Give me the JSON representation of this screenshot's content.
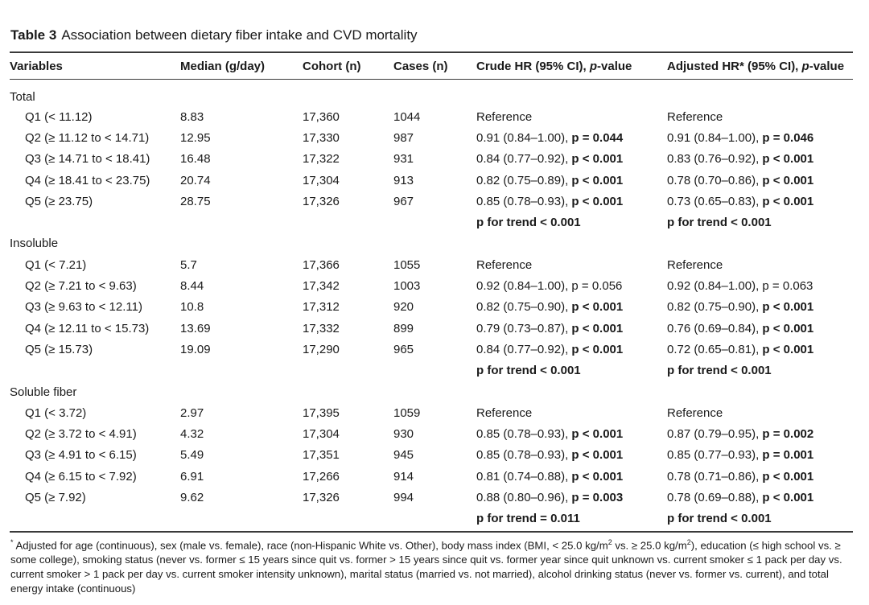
{
  "caption": {
    "label": "Table 3",
    "text": "Association between dietary fiber intake and CVD mortality"
  },
  "headers": {
    "variables": "Variables",
    "median": "Median (g/day)",
    "cohort": "Cohort (n)",
    "cases": "Cases (n)",
    "crude_prefix": "Crude HR (95% CI), ",
    "crude_p": "p",
    "crude_suffix": "-value",
    "adjusted_prefix": "Adjusted HR* (95% CI), ",
    "adjusted_p": "p",
    "adjusted_suffix": "-value"
  },
  "groups": [
    {
      "name": "Total",
      "rows": [
        {
          "label": "Q1 (< 11.12)",
          "median": "8.83",
          "cohort": "17,360",
          "cases": "1044",
          "crude_ci": "Reference",
          "crude_p": "",
          "adj_ci": "Reference",
          "adj_p": ""
        },
        {
          "label": "Q2 (≥ 11.12 to < 14.71)",
          "median": "12.95",
          "cohort": "17,330",
          "cases": "987",
          "crude_ci": "0.91 (0.84–1.00), ",
          "crude_p": "p = 0.044",
          "adj_ci": "0.91 (0.84–1.00), ",
          "adj_p": "p = 0.046"
        },
        {
          "label": "Q3 (≥ 14.71 to < 18.41)",
          "median": "16.48",
          "cohort": "17,322",
          "cases": "931",
          "crude_ci": "0.84 (0.77–0.92), ",
          "crude_p": "p < 0.001",
          "adj_ci": "0.83 (0.76–0.92), ",
          "adj_p": "p < 0.001"
        },
        {
          "label": "Q4 (≥ 18.41 to < 23.75)",
          "median": "20.74",
          "cohort": "17,304",
          "cases": "913",
          "crude_ci": "0.82 (0.75–0.89), ",
          "crude_p": "p < 0.001",
          "adj_ci": "0.78 (0.70–0.86), ",
          "adj_p": "p < 0.001"
        },
        {
          "label": "Q5 (≥ 23.75)",
          "median": "28.75",
          "cohort": "17,326",
          "cases": "967",
          "crude_ci": "0.85 (0.78–0.93), ",
          "crude_p": "p < 0.001",
          "adj_ci": "0.73 (0.65–0.83), ",
          "adj_p": "p < 0.001"
        }
      ],
      "trend_crude": "p for trend < 0.001",
      "trend_adj": "p for trend < 0.001"
    },
    {
      "name": "Insoluble",
      "rows": [
        {
          "label": "Q1 (< 7.21)",
          "median": "5.7",
          "cohort": "17,366",
          "cases": "1055",
          "crude_ci": "Reference",
          "crude_p": "",
          "adj_ci": "Reference",
          "adj_p": ""
        },
        {
          "label": "Q2 (≥ 7.21 to < 9.63)",
          "median": "8.44",
          "cohort": "17,342",
          "cases": "1003",
          "crude_ci": "0.92 (0.84–1.00), p = 0.056",
          "crude_p": "",
          "adj_ci": "0.92 (0.84–1.00), p = 0.063",
          "adj_p": ""
        },
        {
          "label": "Q3 (≥ 9.63 to < 12.11)",
          "median": "10.8",
          "cohort": "17,312",
          "cases": "920",
          "crude_ci": "0.82 (0.75–0.90), ",
          "crude_p": "p < 0.001",
          "adj_ci": "0.82 (0.75–0.90), ",
          "adj_p": "p < 0.001"
        },
        {
          "label": "Q4 (≥ 12.11 to < 15.73)",
          "median": "13.69",
          "cohort": "17,332",
          "cases": "899",
          "crude_ci": "0.79 (0.73–0.87), ",
          "crude_p": "p < 0.001",
          "adj_ci": "0.76 (0.69–0.84), ",
          "adj_p": "p < 0.001"
        },
        {
          "label": "Q5 (≥ 15.73)",
          "median": "19.09",
          "cohort": "17,290",
          "cases": "965",
          "crude_ci": "0.84 (0.77–0.92), ",
          "crude_p": "p < 0.001",
          "adj_ci": "0.72 (0.65–0.81), ",
          "adj_p": "p < 0.001"
        }
      ],
      "trend_crude": "p for trend < 0.001",
      "trend_adj": "p for trend < 0.001"
    },
    {
      "name": "Soluble fiber",
      "rows": [
        {
          "label": "Q1 (< 3.72)",
          "median": "2.97",
          "cohort": "17,395",
          "cases": "1059",
          "crude_ci": "Reference",
          "crude_p": "",
          "adj_ci": "Reference",
          "adj_p": ""
        },
        {
          "label": "Q2 (≥ 3.72 to < 4.91)",
          "median": "4.32",
          "cohort": "17,304",
          "cases": "930",
          "crude_ci": "0.85 (0.78–0.93), ",
          "crude_p": "p < 0.001",
          "adj_ci": "0.87 (0.79–0.95), ",
          "adj_p": "p = 0.002"
        },
        {
          "label": "Q3 (≥ 4.91 to < 6.15)",
          "median": "5.49",
          "cohort": "17,351",
          "cases": "945",
          "crude_ci": "0.85 (0.78–0.93), ",
          "crude_p": "p < 0.001",
          "adj_ci": "0.85 (0.77–0.93), ",
          "adj_p": "p = 0.001"
        },
        {
          "label": "Q4 (≥ 6.15 to < 7.92)",
          "median": "6.91",
          "cohort": "17,266",
          "cases": "914",
          "crude_ci": "0.81 (0.74–0.88), ",
          "crude_p": "p < 0.001",
          "adj_ci": "0.78 (0.71–0.86), ",
          "adj_p": "p < 0.001"
        },
        {
          "label": "Q5 (≥ 7.92)",
          "median": "9.62",
          "cohort": "17,326",
          "cases": "994",
          "crude_ci": "0.88 (0.80–0.96), ",
          "crude_p": "p = 0.003",
          "adj_ci": "0.78 (0.69–0.88), ",
          "adj_p": "p < 0.001"
        }
      ],
      "trend_crude": "p for trend = 0.011",
      "trend_adj": "p for trend < 0.001"
    }
  ],
  "footnote": {
    "marker": "*",
    "text_1": " Adjusted for age (continuous), sex (male vs. female), race (non-Hispanic White vs. Other), body mass index (BMI, < 25.0 kg/m",
    "sup_1": "2",
    "text_2": " vs. ≥ 25.0 kg/m",
    "sup_2": "2",
    "text_3": "), education (≤ high school vs. ≥ some college), smoking status (never vs. former ≤ 15 years since quit vs. former > 15 years since quit vs. former year since quit unknown vs. current smoker ≤ 1 pack per day vs. current smoker > 1 pack per day vs. current smoker intensity unknown), marital status (married vs. not married), alcohol drinking status (never vs. former vs. current), and total energy intake (continuous)"
  }
}
